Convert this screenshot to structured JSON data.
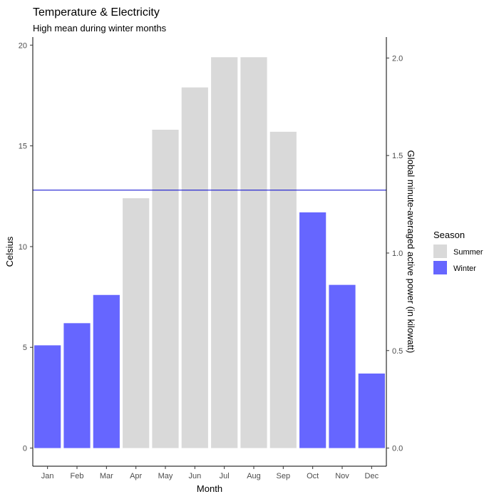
{
  "chart_data": {
    "type": "bar",
    "title": "Temperature & Electricity",
    "subtitle": "High mean during winter months",
    "xlabel": "Month",
    "ylabel": "Celsius",
    "y2label": "Global minute-averaged active power (in kilowatt)",
    "categories": [
      "Jan",
      "Feb",
      "Mar",
      "Apr",
      "May",
      "Jun",
      "Jul",
      "Aug",
      "Sep",
      "Oct",
      "Nov",
      "Dec"
    ],
    "values": [
      5.1,
      6.2,
      7.6,
      12.4,
      15.8,
      17.9,
      19.4,
      19.4,
      15.7,
      11.7,
      8.1,
      3.7
    ],
    "season": [
      "Winter",
      "Winter",
      "Winter",
      "Summer",
      "Summer",
      "Summer",
      "Summer",
      "Summer",
      "Summer",
      "Winter",
      "Winter",
      "Winter"
    ],
    "ylim": [
      -0.9,
      20.4
    ],
    "yticks": [
      0,
      5,
      10,
      15,
      20
    ],
    "y2ticks": [
      0.0,
      0.5,
      1.0,
      1.5,
      2.0
    ],
    "y2_per_y": 0.1033,
    "hline_y": 12.8,
    "hline_color": "#0000cd",
    "legend": {
      "title": "Season",
      "position": "right",
      "entries": [
        {
          "label": "Summer",
          "color": "#d9d9d9"
        },
        {
          "label": "Winter",
          "color": "#6666ff"
        }
      ]
    },
    "grid": false
  }
}
